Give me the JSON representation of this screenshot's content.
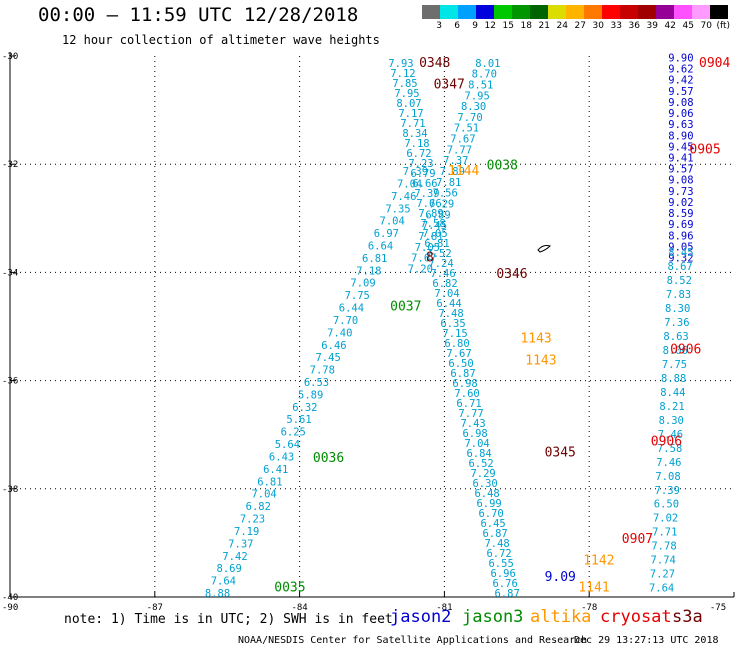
{
  "header": {
    "title": "00:00 — 11:59 UTC 12/28/2018",
    "subtitle": "12 hour collection of altimeter wave heights"
  },
  "colorbar": {
    "colors": [
      "#6e6e6e",
      "#00e5e5",
      "#00a0ff",
      "#0000dc",
      "#00c800",
      "#009600",
      "#006400",
      "#dcdc00",
      "#ffb400",
      "#ff7800",
      "#ff0000",
      "#c80000",
      "#a00000",
      "#960096",
      "#ff50ff",
      "#ff9bff",
      "#000000"
    ],
    "labels": [
      "3",
      "6",
      "9",
      "12",
      "15",
      "18",
      "21",
      "24",
      "27",
      "30",
      "33",
      "36",
      "39",
      "42",
      "45",
      "70",
      "(ft)"
    ]
  },
  "axes": {
    "y_ticks": [
      "-30",
      "-32",
      "-34",
      "-36",
      "-38",
      "-40"
    ],
    "x_ticks": [
      "-90",
      "-87",
      "-84",
      "-81",
      "-78",
      "-75"
    ]
  },
  "mission_colors": {
    "jason2": "#00a0d0",
    "jason3": "#008c00",
    "altika": "#ff9600",
    "cryosat": "#e60000",
    "s3a": "#0000d2",
    "dark": "#6e0000"
  },
  "tracks": [
    {
      "mission": "jason2",
      "lon_start": -81.9,
      "lat_start": -30.2,
      "lon_end": -79.7,
      "lat_end": -40.0,
      "values": [
        "7.93",
        "7.12",
        "7.85",
        "7.95",
        "8.07",
        "7.17",
        "7.71",
        "8.34",
        "7.18",
        "6.72",
        "7.23",
        "6.79",
        "6.66",
        "7.39",
        "7.66",
        "7.89",
        "7.58",
        "7.05",
        "6.81",
        "7.52",
        "7.24",
        "7.46",
        "6.82",
        "7.04",
        "6.44",
        "7.48",
        "6.35",
        "7.15",
        "6.80",
        "7.67",
        "6.50",
        "6.87",
        "6.98",
        "7.60",
        "6.71",
        "7.77",
        "7.43",
        "6.98",
        "7.04",
        "6.84",
        "6.52",
        "7.29",
        "6.30",
        "6.48",
        "6.99",
        "6.70",
        "6.45",
        "6.87",
        "7.48",
        "6.72",
        "6.55",
        "6.96",
        "6.76",
        "6.87"
      ]
    },
    {
      "mission": "jason2",
      "lon_start": -80.1,
      "lat_start": -30.2,
      "lon_end": -81.5,
      "lat_end": -34.0,
      "values": [
        "8.01",
        "8.70",
        "8.51",
        "7.95",
        "8.30",
        "7.70",
        "7.51",
        "7.67",
        "7.77",
        "7.37",
        "7.89",
        "7.81",
        "7.56",
        "7.29",
        "6.89",
        "7.45",
        "7.81",
        "7.05",
        "7.67",
        "7.20"
      ]
    },
    {
      "mission": "jason2",
      "lon_start": -81.6,
      "lat_start": -32.2,
      "lon_end": -85.7,
      "lat_end": -40.0,
      "values": [
        "7.39",
        "7.04",
        "7.46",
        "7.35",
        "7.04",
        "6.97",
        "6.64",
        "6.81",
        "7.18",
        "7.09",
        "7.75",
        "6.44",
        "7.70",
        "7.40",
        "6.46",
        "7.45",
        "7.78",
        "6.53",
        "5.89",
        "6.32",
        "5.61",
        "6.25",
        "5.64",
        "6.43",
        "6.41",
        "6.81",
        "7.04",
        "6.82",
        "7.23",
        "7.19",
        "7.37",
        "7.42",
        "8.69",
        "7.64",
        "8.88"
      ]
    },
    {
      "mission": "s3a",
      "lon_start": -76.1,
      "lat_start": -30.1,
      "lon_end": -76.1,
      "lat_end": -33.8,
      "values": [
        "9.90",
        "9.62",
        "9.42",
        "9.57",
        "9.08",
        "9.06",
        "9.63",
        "8.90",
        "9.45",
        "9.41",
        "9.57",
        "9.08",
        "9.73",
        "9.02",
        "8.59",
        "9.69",
        "8.96",
        "9.05",
        "9.32"
      ]
    },
    {
      "mission": "jason2",
      "lon_start": -76.1,
      "lat_start": -33.7,
      "lon_end": -76.5,
      "lat_end": -39.9,
      "values": [
        "8.45",
        "8.67",
        "8.52",
        "7.83",
        "8.30",
        "7.36",
        "8.63",
        "8.06",
        "7.75",
        "8.88",
        "8.44",
        "8.21",
        "8.30",
        "7.46",
        "7.58",
        "7.46",
        "7.08",
        "7.39",
        "6.50",
        "7.02",
        "7.71",
        "7.78",
        "7.74",
        "7.27",
        "7.64"
      ]
    }
  ],
  "labels": [
    {
      "text": "0348",
      "mission": "dark",
      "lon": -81.2,
      "lat": -30.2
    },
    {
      "text": "0347",
      "mission": "dark",
      "lon": -80.9,
      "lat": -30.6
    },
    {
      "text": "0038",
      "mission": "jason3",
      "lon": -79.8,
      "lat": -32.1
    },
    {
      "text": "1144",
      "mission": "altika",
      "lon": -80.6,
      "lat": -32.2
    },
    {
      "text": "0346",
      "mission": "dark",
      "lon": -79.6,
      "lat": -34.1
    },
    {
      "text": "0037",
      "mission": "jason3",
      "lon": -81.8,
      "lat": -34.7
    },
    {
      "text": "1143",
      "mission": "altika",
      "lon": -79.1,
      "lat": -35.3
    },
    {
      "text": "1143",
      "mission": "altika",
      "lon": -79.0,
      "lat": -35.7
    },
    {
      "text": "0345",
      "mission": "dark",
      "lon": -78.6,
      "lat": -37.4
    },
    {
      "text": "0036",
      "mission": "jason3",
      "lon": -83.4,
      "lat": -37.5
    },
    {
      "text": "1142",
      "mission": "altika",
      "lon": -77.8,
      "lat": -39.4
    },
    {
      "text": "1141",
      "mission": "altika",
      "lon": -77.9,
      "lat": -39.9
    },
    {
      "text": "0035",
      "mission": "jason3",
      "lon": -84.2,
      "lat": -39.9
    },
    {
      "text": "0904",
      "mission": "cryosat",
      "lon": -75.4,
      "lat": -30.2
    },
    {
      "text": "0905",
      "mission": "cryosat",
      "lon": -75.6,
      "lat": -31.8
    },
    {
      "text": "0906",
      "mission": "cryosat",
      "lon": -76.0,
      "lat": -35.5
    },
    {
      "text": "0906",
      "mission": "cryosat",
      "lon": -76.4,
      "lat": -37.2
    },
    {
      "text": "0907",
      "mission": "cryosat",
      "lon": -77.0,
      "lat": -39.0
    },
    {
      "text": "8",
      "mission": "dark",
      "lon": -81.3,
      "lat": -33.8
    },
    {
      "text": "9.09",
      "mission": "s3a",
      "lon": -78.6,
      "lat": -39.7
    }
  ],
  "note": "note: 1) Time is in UTC; 2) SWH is in feet",
  "legend": [
    {
      "label": "jason2",
      "mission": "s3a"
    },
    {
      "label": "jason3",
      "mission": "jason3"
    },
    {
      "label": "altika",
      "mission": "altika"
    },
    {
      "label": "cryosat",
      "mission": "cryosat"
    },
    {
      "label": "s3a",
      "mission": "dark"
    }
  ],
  "footer": {
    "left": "NOAA/NESDIS Center for Satellite Applications and Research",
    "right": "Dec 29 13:27:13 UTC 2018"
  }
}
